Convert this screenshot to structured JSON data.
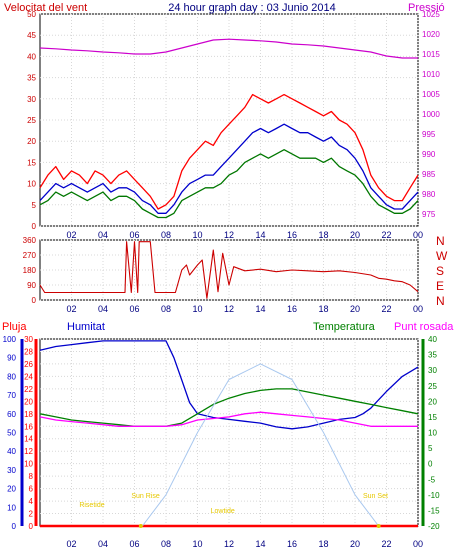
{
  "header": {
    "title": "24 hour graph day : 03 Junio 2014",
    "left_label": "Velocitat del vent",
    "right_label": "Pressió"
  },
  "colors": {
    "gust": "#ff0000",
    "avg_speed": "#0000cc",
    "speed": "#007700",
    "pressure": "#cc00cc",
    "direction": "#cc0000",
    "rain": "#ff0000",
    "humidity": "#0000cc",
    "temperature": "#008000",
    "dewpoint": "#ff00ff",
    "sun_curve": "#a9c8ef",
    "sun_events": "#e6c800",
    "axis_title_left": "#cc0000",
    "axis_title_right": "#cc00cc",
    "frame": "#000000"
  },
  "x_ticks": [
    "02",
    "04",
    "06",
    "08",
    "10",
    "12",
    "14",
    "16",
    "18",
    "20",
    "22",
    "00"
  ],
  "chart_data": [
    {
      "type": "line",
      "title": "24 hour graph day : 03 Junio 2014",
      "x_unit": "hour",
      "xlim": [
        0,
        24
      ],
      "ylabel_left": "Velocitat del vent",
      "ylim_left": [
        0,
        50
      ],
      "yticks_left": [
        0,
        5,
        10,
        15,
        20,
        25,
        30,
        35,
        40,
        45,
        50
      ],
      "ylabel_right": "Pressió",
      "ylim_right": [
        972,
        1025
      ],
      "yticks_right": [
        975,
        980,
        985,
        990,
        995,
        1000,
        1005,
        1010,
        1015,
        1020,
        1025
      ],
      "series": [
        {
          "key": "gust",
          "axis": "left",
          "x": [
            0,
            0.5,
            1,
            1.5,
            2,
            2.5,
            3,
            3.5,
            4,
            4.5,
            5,
            5.5,
            6,
            6.5,
            7,
            7.5,
            8,
            8.5,
            9,
            9.5,
            10,
            10.5,
            11,
            11.5,
            12,
            12.5,
            13,
            13.5,
            14,
            14.5,
            15,
            15.5,
            16,
            16.5,
            17,
            17.5,
            18,
            18.5,
            19,
            19.5,
            20,
            20.5,
            21,
            21.5,
            22,
            22.5,
            23,
            23.5,
            24
          ],
          "values": [
            9,
            12,
            14,
            11,
            13,
            12,
            10,
            13,
            12,
            10,
            12,
            13,
            11,
            9,
            7,
            4,
            5,
            7,
            13,
            16,
            18,
            20,
            19,
            22,
            24,
            26,
            28,
            31,
            30,
            29,
            30,
            31,
            30,
            29,
            28,
            27,
            26,
            27,
            25,
            24,
            22,
            18,
            12,
            9,
            7,
            6,
            6,
            9,
            12
          ]
        },
        {
          "key": "avg_speed",
          "axis": "left",
          "x": [
            0,
            0.5,
            1,
            1.5,
            2,
            2.5,
            3,
            3.5,
            4,
            4.5,
            5,
            5.5,
            6,
            6.5,
            7,
            7.5,
            8,
            8.5,
            9,
            9.5,
            10,
            10.5,
            11,
            11.5,
            12,
            12.5,
            13,
            13.5,
            14,
            14.5,
            15,
            15.5,
            16,
            16.5,
            17,
            17.5,
            18,
            18.5,
            19,
            19.5,
            20,
            20.5,
            21,
            21.5,
            22,
            22.5,
            23,
            23.5,
            24
          ],
          "values": [
            6,
            8,
            10,
            9,
            10,
            9,
            8,
            9,
            10,
            8,
            9,
            9,
            8,
            6,
            5,
            3,
            3,
            5,
            8,
            10,
            11,
            12,
            12,
            14,
            16,
            18,
            20,
            22,
            23,
            22,
            23,
            24,
            23,
            22,
            22,
            21,
            20,
            21,
            19,
            18,
            16,
            13,
            9,
            7,
            5,
            4,
            4,
            6,
            8
          ]
        },
        {
          "key": "speed",
          "axis": "left",
          "x": [
            0,
            0.5,
            1,
            1.5,
            2,
            2.5,
            3,
            3.5,
            4,
            4.5,
            5,
            5.5,
            6,
            6.5,
            7,
            7.5,
            8,
            8.5,
            9,
            9.5,
            10,
            10.5,
            11,
            11.5,
            12,
            12.5,
            13,
            13.5,
            14,
            14.5,
            15,
            15.5,
            16,
            16.5,
            17,
            17.5,
            18,
            18.5,
            19,
            19.5,
            20,
            20.5,
            21,
            21.5,
            22,
            22.5,
            23,
            23.5,
            24
          ],
          "values": [
            5,
            6,
            8,
            7,
            8,
            7,
            6,
            7,
            8,
            6,
            7,
            7,
            6,
            4,
            3,
            2,
            2,
            3,
            6,
            7,
            8,
            9,
            9,
            10,
            12,
            13,
            15,
            16,
            17,
            16,
            17,
            18,
            17,
            16,
            16,
            16,
            15,
            16,
            14,
            13,
            12,
            10,
            7,
            5,
            4,
            3,
            3,
            4,
            6
          ]
        },
        {
          "key": "pressure",
          "axis": "right",
          "x": [
            0,
            1,
            2,
            3,
            4,
            5,
            6,
            7,
            8,
            9,
            10,
            11,
            12,
            13,
            14,
            15,
            16,
            17,
            18,
            19,
            20,
            21,
            22,
            23,
            24
          ],
          "values": [
            1016.5,
            1016.3,
            1016,
            1015.8,
            1015.5,
            1015.3,
            1015,
            1015,
            1015.5,
            1016.5,
            1017.5,
            1018.5,
            1018.7,
            1018.5,
            1018.3,
            1018,
            1017.5,
            1017.3,
            1017,
            1016.5,
            1016,
            1015.5,
            1014.5,
            1014,
            1014
          ]
        }
      ]
    },
    {
      "type": "line",
      "x_unit": "hour",
      "xlim": [
        0,
        24
      ],
      "ylim": [
        0,
        360
      ],
      "yticks": [
        0,
        90,
        180,
        270,
        360
      ],
      "compass_labels": [
        "N",
        "W",
        "S",
        "E",
        "N"
      ],
      "series": [
        {
          "key": "direction",
          "x": [
            0,
            0.3,
            1,
            2,
            3,
            4,
            5,
            5.4,
            5.5,
            5.8,
            6,
            6.2,
            6.3,
            6.7,
            7,
            7.3,
            7.5,
            8,
            8.4,
            8.6,
            9,
            9.3,
            9.5,
            10,
            10.3,
            10.6,
            11,
            11.3,
            11.6,
            12,
            12.3,
            13,
            14,
            15,
            16,
            17,
            18,
            19,
            20,
            21,
            21.5,
            22,
            22.5,
            23,
            23.5,
            24
          ],
          "values": [
            90,
            45,
            45,
            45,
            45,
            45,
            45,
            45,
            350,
            45,
            350,
            45,
            350,
            350,
            350,
            45,
            45,
            45,
            45,
            45,
            180,
            210,
            150,
            210,
            240,
            10,
            300,
            50,
            280,
            90,
            200,
            175,
            185,
            170,
            180,
            175,
            170,
            175,
            165,
            150,
            130,
            125,
            115,
            110,
            90,
            50
          ]
        }
      ]
    },
    {
      "type": "line",
      "x_unit": "hour",
      "xlim": [
        0,
        24
      ],
      "legend": [
        "Pluja",
        "Humitat",
        "Temperatura",
        "Punt rosada"
      ],
      "axes": {
        "humidity": {
          "ylim": [
            0,
            100
          ],
          "yticks": [
            0,
            10,
            20,
            30,
            40,
            50,
            60,
            70,
            80,
            90,
            100
          ]
        },
        "rain": {
          "ylim": [
            0,
            30
          ],
          "yticks": [
            0,
            2,
            4,
            6,
            8,
            10,
            12,
            14,
            16,
            18,
            20,
            22,
            24,
            26,
            28,
            30
          ]
        },
        "temperature": {
          "ylim": [
            -20,
            40
          ],
          "yticks": [
            -20,
            -15,
            -10,
            -5,
            0,
            5,
            10,
            15,
            20,
            25,
            30,
            35,
            40
          ]
        }
      },
      "annotations": [
        "Sun Rise",
        "Sun Set",
        "Risetide",
        "Lowtide"
      ],
      "series": [
        {
          "key": "humidity",
          "axis": "humidity",
          "x": [
            0,
            1,
            2,
            3,
            4,
            5,
            6,
            7,
            8,
            8.5,
            9,
            9.5,
            10,
            11,
            12,
            13,
            14,
            15,
            16,
            17,
            18,
            19,
            20,
            20.5,
            21,
            22,
            23,
            24
          ],
          "values": [
            94,
            96,
            97,
            98,
            99,
            99,
            99,
            99,
            99,
            90,
            78,
            66,
            60,
            58,
            57,
            56,
            55,
            53,
            52,
            53,
            55,
            57,
            58,
            60,
            63,
            72,
            80,
            85
          ]
        },
        {
          "key": "temperature",
          "axis": "temperature",
          "x": [
            0,
            1,
            2,
            3,
            4,
            5,
            6,
            7,
            8,
            9,
            10,
            11,
            12,
            13,
            14,
            15,
            16,
            17,
            18,
            19,
            20,
            21,
            22,
            23,
            24
          ],
          "values": [
            16,
            15,
            14,
            13.5,
            13,
            12.5,
            12,
            12,
            12,
            13,
            16,
            19,
            21,
            22.5,
            23.5,
            24,
            24,
            23,
            22,
            21,
            20,
            19,
            18,
            17,
            16
          ]
        },
        {
          "key": "dewpoint",
          "axis": "temperature",
          "x": [
            0,
            1,
            2,
            3,
            4,
            5,
            6,
            7,
            8,
            9,
            10,
            11,
            12,
            13,
            14,
            15,
            16,
            17,
            18,
            19,
            20,
            21,
            22,
            23,
            24
          ],
          "values": [
            15,
            14,
            13.5,
            13,
            12.5,
            12,
            12,
            12,
            12,
            12.5,
            14,
            14.5,
            15,
            16,
            16.5,
            16,
            15.5,
            15,
            14.5,
            14,
            13,
            12,
            12,
            12,
            12
          ]
        },
        {
          "key": "rain",
          "axis": "rain",
          "x": [
            0,
            24
          ],
          "values": [
            0,
            0
          ]
        },
        {
          "key": "sun_curve",
          "axis": "temperature",
          "x": [
            6.5,
            8,
            10,
            12,
            14,
            16,
            18,
            20,
            21.5
          ],
          "values": [
            -20,
            -10,
            10,
            27,
            32,
            27,
            10,
            -10,
            -20
          ]
        }
      ]
    }
  ]
}
